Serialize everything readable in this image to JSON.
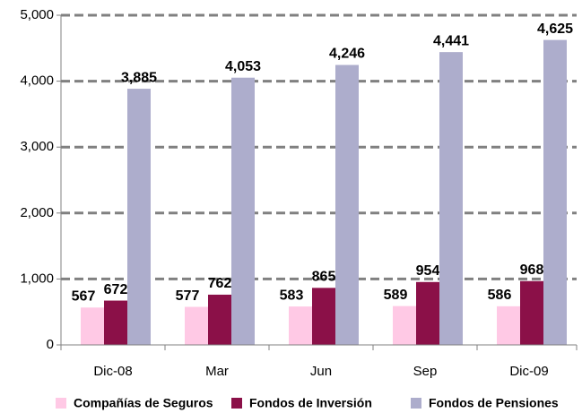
{
  "chart_data": {
    "type": "bar",
    "categories": [
      "Dic-08",
      "Mar",
      "Jun",
      "Sep",
      "Dic-09"
    ],
    "series": [
      {
        "name": "Compañías de Seguros",
        "color": "#ffc9e5",
        "values": [
          567,
          577,
          583,
          589,
          586
        ]
      },
      {
        "name": "Fondos de Inversión",
        "color": "#8b1048",
        "values": [
          672,
          762,
          865,
          954,
          968
        ]
      },
      {
        "name": "Fondos de Pensiones",
        "color": "#adadcc",
        "values": [
          3885,
          4053,
          4246,
          4441,
          4625
        ],
        "value_labels": [
          "3,885",
          "4,053",
          "4,246",
          "4,441",
          "4,625"
        ]
      }
    ],
    "ylim": [
      0,
      5000
    ],
    "yticks": [
      0,
      {
        "value": 1000,
        "label": "1,000"
      },
      {
        "value": 2000,
        "label": "2,000"
      },
      {
        "value": 3000,
        "label": "3,000"
      },
      {
        "value": 4000,
        "label": "4,000"
      },
      {
        "value": 5000,
        "label": "5,000"
      }
    ],
    "grid": true,
    "legend": "bottom"
  }
}
